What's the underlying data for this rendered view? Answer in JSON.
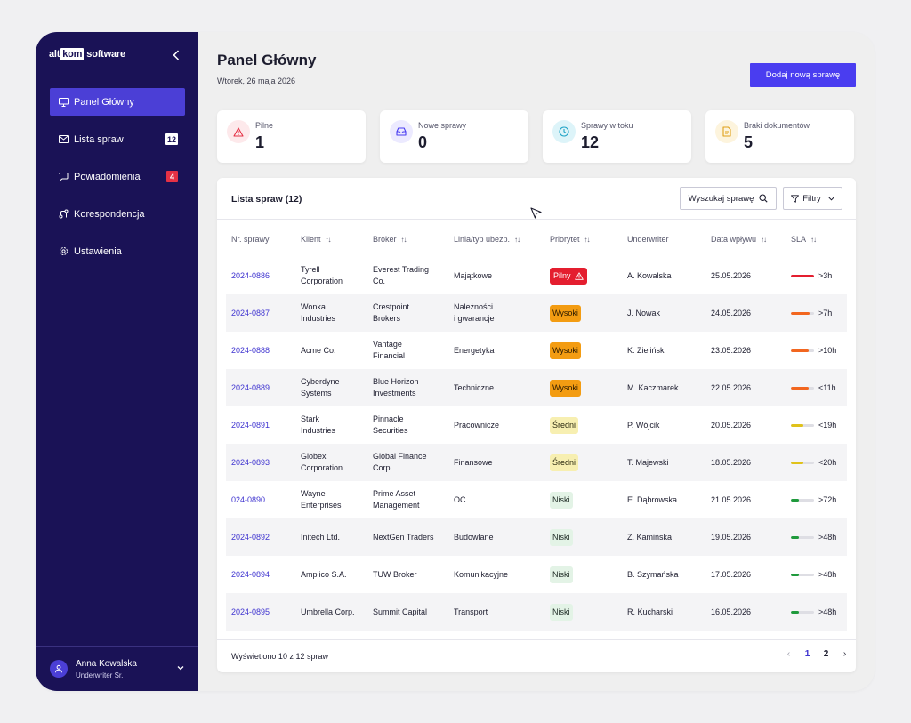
{
  "logo": {
    "part1": "alt",
    "part2": "kom",
    "part3": "software"
  },
  "sidebar": {
    "items": [
      {
        "label": "Panel Główny",
        "icon": "monitor-icon"
      },
      {
        "label": "Lista spraw",
        "icon": "mail-icon",
        "badge": "12"
      },
      {
        "label": "Powiadomienia",
        "icon": "chat-icon",
        "badge": "4"
      },
      {
        "label": "Korespondencja",
        "icon": "route-icon"
      },
      {
        "label": "Ustawienia",
        "icon": "gear-icon"
      }
    ],
    "user": {
      "name": "Anna Kowalska",
      "role": "Underwriter Sr."
    }
  },
  "header": {
    "title": "Panel Główny",
    "date": "Wtorek, 26 maja 2026",
    "add_button": "Dodaj nową sprawę"
  },
  "stats": [
    {
      "label": "Pilne",
      "value": "1",
      "icon": "alert-triangle-icon",
      "color": "#e53145"
    },
    {
      "label": "Nowe sprawy",
      "value": "0",
      "icon": "inbox-icon",
      "color": "#4a3df0"
    },
    {
      "label": "Sprawy w toku",
      "value": "12",
      "icon": "clock-icon",
      "color": "#1fa3c6"
    },
    {
      "label": "Braki dokumentów",
      "value": "5",
      "icon": "document-icon",
      "color": "#e0a019"
    }
  ],
  "list": {
    "title": "Lista spraw (12)",
    "search_label": "Wyszukaj sprawę",
    "filter_label": "Filtry",
    "columns": [
      "Nr. sprawy",
      "Klient",
      "Broker",
      "Linia/typ ubezp.",
      "Priorytet",
      "Underwriter",
      "Data wpływu",
      "SLA"
    ],
    "rows": [
      {
        "id": "2024-0886",
        "client": [
          "Tyrell",
          "Corporation"
        ],
        "broker": [
          "Everest Trading",
          "Co."
        ],
        "line": [
          "Majątkowe"
        ],
        "priority": "Pilny",
        "prio_class": "pilny",
        "uw": "A. Kowalska",
        "date": "25.05.2026",
        "sla": ">3h",
        "sla_level": 1.0,
        "sla_color": "#e41e2f"
      },
      {
        "id": "2024-0887",
        "client": [
          "Wonka",
          "Industries"
        ],
        "broker": [
          "Crestpoint",
          "Brokers"
        ],
        "line": [
          "Należności",
          "i gwarancje"
        ],
        "priority": "Wysoki",
        "prio_class": "wysoki",
        "uw": "J. Nowak",
        "date": "24.05.2026",
        "sla": ">7h",
        "sla_level": 0.8,
        "sla_color": "#f2661f"
      },
      {
        "id": "2024-0888",
        "client": [
          "Acme Co."
        ],
        "broker": [
          "Vantage",
          "Financial"
        ],
        "line": [
          "Energetyka"
        ],
        "priority": "Wysoki",
        "prio_class": "wysoki",
        "uw": "K. Zieliński",
        "date": "23.05.2026",
        "sla": ">10h",
        "sla_level": 0.75,
        "sla_color": "#f2661f"
      },
      {
        "id": "2024-0889",
        "client": [
          "Cyberdyne",
          "Systems"
        ],
        "broker": [
          "Blue Horizon",
          "Investments"
        ],
        "line": [
          "Techniczne"
        ],
        "priority": "Wysoki",
        "prio_class": "wysoki",
        "uw": "M. Kaczmarek",
        "date": "22.05.2026",
        "sla": "<11h",
        "sla_level": 0.75,
        "sla_color": "#f2661f"
      },
      {
        "id": "2024-0891",
        "client": [
          "Stark",
          "Industries"
        ],
        "broker": [
          "Pinnacle",
          "Securities"
        ],
        "line": [
          "Pracownicze"
        ],
        "priority": "Średni",
        "prio_class": "sredni",
        "uw": "P. Wójcik",
        "date": "20.05.2026",
        "sla": "<19h",
        "sla_level": 0.55,
        "sla_color": "#e0c21a"
      },
      {
        "id": "2024-0893",
        "client": [
          "Globex",
          "Corporation"
        ],
        "broker": [
          "Global Finance",
          "Corp"
        ],
        "line": [
          "Finansowe"
        ],
        "priority": "Średni",
        "prio_class": "sredni",
        "uw": "T. Majewski",
        "date": "18.05.2026",
        "sla": "<20h",
        "sla_level": 0.55,
        "sla_color": "#e0c21a"
      },
      {
        "id": "024-0890",
        "client": [
          "Wayne",
          "Enterprises"
        ],
        "broker": [
          "Prime Asset",
          "Management"
        ],
        "line": [
          "OC"
        ],
        "priority": "Niski",
        "prio_class": "niski",
        "uw": "E. Dąbrowska",
        "date": "21.05.2026",
        "sla": ">72h",
        "sla_level": 0.35,
        "sla_color": "#1f9a3c"
      },
      {
        "id": "2024-0892",
        "client": [
          "Initech Ltd."
        ],
        "broker": [
          "NextGen Traders"
        ],
        "line": [
          "Budowlane"
        ],
        "priority": "Niski",
        "prio_class": "niski",
        "uw": "Z. Kamińska",
        "date": "19.05.2026",
        "sla": ">48h",
        "sla_level": 0.35,
        "sla_color": "#1f9a3c"
      },
      {
        "id": "2024-0894",
        "client": [
          "Amplico S.A."
        ],
        "broker": [
          "TUW Broker"
        ],
        "line": [
          "Komunikacyjne"
        ],
        "priority": "Niski",
        "prio_class": "niski",
        "uw": "B. Szymańska",
        "date": "17.05.2026",
        "sla": ">48h",
        "sla_level": 0.35,
        "sla_color": "#1f9a3c"
      },
      {
        "id": "2024-0895",
        "client": [
          "Umbrella Corp."
        ],
        "broker": [
          "Summit Capital"
        ],
        "line": [
          "Transport"
        ],
        "priority": "Niski",
        "prio_class": "niski",
        "uw": "R. Kucharski",
        "date": "16.05.2026",
        "sla": ">48h",
        "sla_level": 0.35,
        "sla_color": "#1f9a3c"
      }
    ],
    "footer": "Wyświetlono 10 z 12 spraw",
    "pages": [
      "1",
      "2"
    ]
  }
}
